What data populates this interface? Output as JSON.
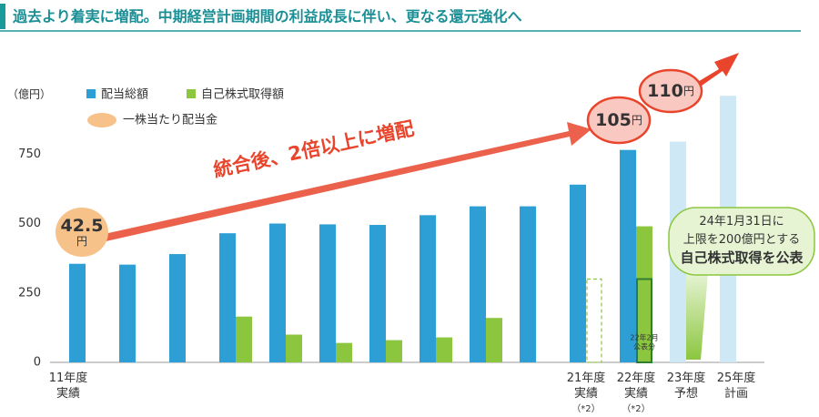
{
  "chart_data": {
    "type": "bar",
    "title": "過去より着実に増配。中期経営計画期間の利益成長に伴い、更なる還元強化へ",
    "y_label": "（億円）",
    "ylim": [
      0,
      1000
    ],
    "yticks": [
      0,
      250,
      500,
      750
    ],
    "categories": [
      "11年度\n実績",
      null,
      null,
      null,
      null,
      null,
      null,
      null,
      null,
      null,
      "21年度\n実績\n（*2）",
      "22年度\n実績\n（*2）",
      "23年度\n予想",
      "25年度\n計画"
    ],
    "series": [
      {
        "name": "配当総額",
        "color": "#2e9fd4",
        "projected_color": "#cfe8f5",
        "values": [
          355,
          352,
          390,
          465,
          500,
          497,
          495,
          530,
          562,
          562,
          640,
          765,
          null,
          null
        ],
        "projected_values": [
          null,
          null,
          null,
          null,
          null,
          null,
          null,
          null,
          null,
          null,
          null,
          null,
          795,
          960
        ]
      },
      {
        "name": "自己株式取得額",
        "color": "#8cc63f",
        "values": [
          null,
          null,
          null,
          165,
          100,
          70,
          80,
          90,
          160,
          null,
          null,
          490,
          null,
          null
        ],
        "outline_values": [
          null,
          null,
          null,
          null,
          null,
          null,
          null,
          null,
          null,
          null,
          300,
          300,
          null,
          null
        ],
        "outline_label": "22年2月\n公表分"
      }
    ],
    "dividend_per_share": {
      "name": "一株当たり配当金",
      "color": "#f7c28a",
      "values": [
        42.5,
        105,
        110
      ],
      "value_labels": [
        "42.5円",
        "105円",
        "110円"
      ]
    },
    "annotation": "統合後、2倍以上に増配",
    "callout": "24年1月31日に\n上限を200億円とする\n自己株式取得を公表"
  }
}
